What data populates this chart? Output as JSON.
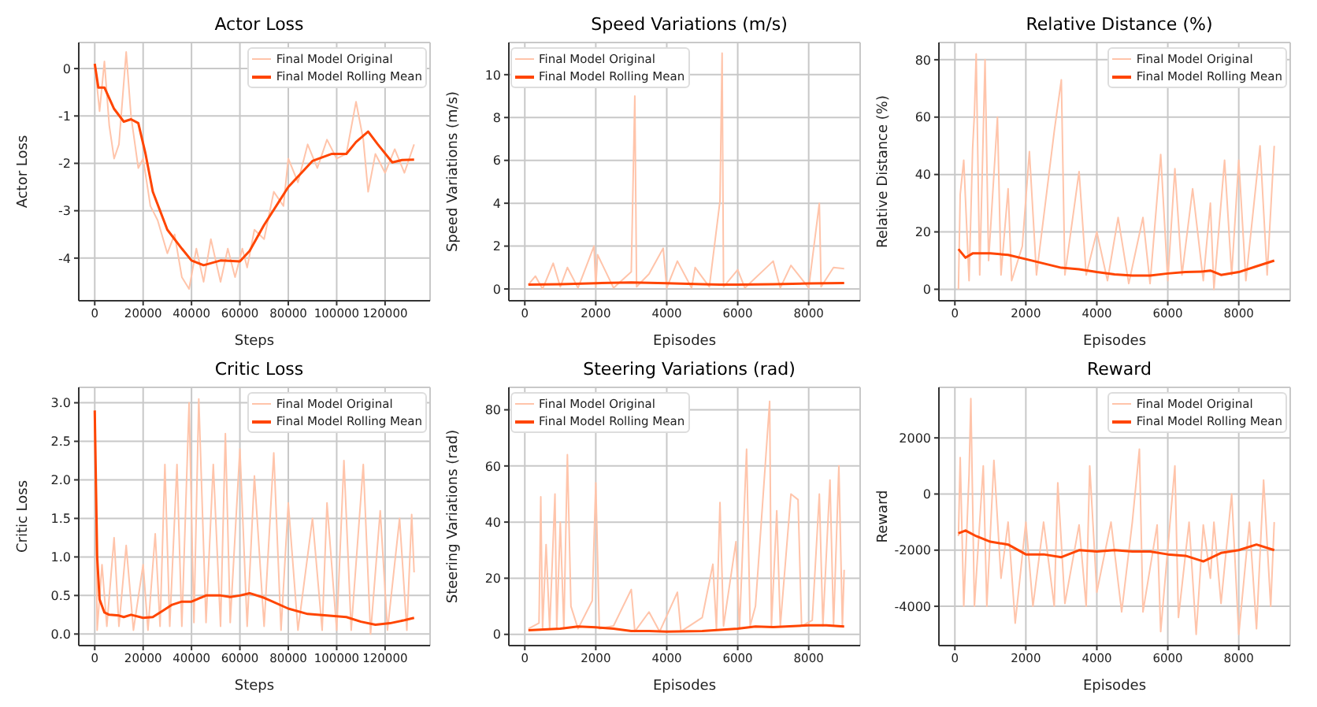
{
  "chart_data": [
    {
      "type": "line",
      "title": "Actor Loss",
      "xlabel": "Steps",
      "ylabel": "Actor Loss",
      "xlim": [
        -6600,
        138600
      ],
      "xticks": [
        0,
        20000,
        40000,
        60000,
        80000,
        100000,
        120000
      ],
      "ylim": [
        -4.9,
        0.55
      ],
      "yticks": [
        -4,
        -3,
        -2,
        -1,
        0
      ],
      "grid": true,
      "legend": "top right",
      "series": [
        {
          "name": "Final Model Original",
          "color": "#ffc4aa",
          "x": [
            0,
            2000,
            4000,
            6000,
            8000,
            10000,
            13000,
            15000,
            18000,
            20000,
            23000,
            26000,
            30000,
            33000,
            36000,
            39000,
            42000,
            45000,
            48000,
            52000,
            55000,
            58000,
            61000,
            63000,
            66000,
            70000,
            74000,
            78000,
            80000,
            84000,
            88000,
            92000,
            96000,
            100000,
            104000,
            108000,
            111000,
            113000,
            116000,
            120000,
            124000,
            128000,
            132000
          ],
          "values": [
            0.1,
            -0.9,
            0.15,
            -1.2,
            -1.9,
            -1.6,
            0.35,
            -1.0,
            -2.1,
            -1.9,
            -2.9,
            -3.2,
            -3.9,
            -3.5,
            -4.4,
            -4.65,
            -3.8,
            -4.5,
            -3.6,
            -4.5,
            -3.8,
            -4.4,
            -3.8,
            -4.2,
            -3.4,
            -3.6,
            -2.6,
            -2.9,
            -1.9,
            -2.4,
            -1.6,
            -2.1,
            -1.5,
            -1.9,
            -1.8,
            -0.7,
            -1.5,
            -2.6,
            -1.8,
            -2.2,
            -1.7,
            -2.2,
            -1.6
          ]
        },
        {
          "name": "Final Model Rolling Mean",
          "color": "#ff4500",
          "x": [
            0,
            1500,
            4000,
            8000,
            12000,
            15000,
            18000,
            21000,
            24000,
            30000,
            36000,
            40000,
            45000,
            52000,
            60000,
            64000,
            70000,
            80000,
            90000,
            98000,
            104000,
            108000,
            113000,
            117000,
            123000,
            127000,
            132000
          ],
          "values": [
            0.1,
            -0.4,
            -0.4,
            -0.85,
            -1.12,
            -1.07,
            -1.15,
            -1.8,
            -2.6,
            -3.4,
            -3.8,
            -4.05,
            -4.15,
            -4.05,
            -4.07,
            -3.85,
            -3.3,
            -2.5,
            -1.95,
            -1.8,
            -1.8,
            -1.55,
            -1.33,
            -1.6,
            -1.98,
            -1.93,
            -1.92
          ]
        }
      ]
    },
    {
      "type": "line",
      "title": "Speed Variations (m/s)",
      "xlabel": "Episodes",
      "ylabel": "Speed Variations (m/s)",
      "xlim": [
        -450,
        9450
      ],
      "xticks": [
        0,
        2000,
        4000,
        6000,
        8000
      ],
      "ylim": [
        -0.55,
        11.5
      ],
      "yticks": [
        0,
        2,
        4,
        6,
        8,
        10
      ],
      "grid": true,
      "legend": "top left",
      "series": [
        {
          "name": "Final Model Original",
          "color": "#ffc4aa",
          "x": [
            100,
            300,
            500,
            800,
            1000,
            1200,
            1500,
            1950,
            2000,
            2050,
            2500,
            3000,
            3100,
            3150,
            3500,
            3900,
            4000,
            4300,
            4700,
            4800,
            5200,
            5500,
            5560,
            5600,
            6000,
            6200,
            7000,
            7200,
            7500,
            8000,
            8300,
            8350,
            8700,
            9000
          ],
          "values": [
            0.2,
            0.6,
            0.0,
            1.2,
            0.1,
            1.0,
            0.05,
            2.0,
            0.1,
            1.6,
            0.05,
            0.8,
            9.0,
            0.1,
            0.7,
            1.9,
            0.05,
            1.3,
            0.05,
            1.0,
            0.1,
            4.1,
            11.0,
            0.1,
            0.9,
            0.05,
            1.3,
            0.05,
            1.1,
            0.05,
            4.0,
            0.1,
            1.0,
            0.95
          ]
        },
        {
          "name": "Final Model Rolling Mean",
          "color": "#ff4500",
          "x": [
            100,
            1000,
            2000,
            3000,
            4000,
            5000,
            5500,
            6000,
            7000,
            8000,
            9000
          ],
          "values": [
            0.2,
            0.22,
            0.27,
            0.3,
            0.27,
            0.22,
            0.2,
            0.2,
            0.22,
            0.26,
            0.28
          ]
        }
      ]
    },
    {
      "type": "line",
      "title": "Relative Distance (%)",
      "xlabel": "Episodes",
      "ylabel": "Relative Distance (%)",
      "xlim": [
        -450,
        9450
      ],
      "xticks": [
        0,
        2000,
        4000,
        6000,
        8000
      ],
      "ylim": [
        -4,
        86
      ],
      "yticks": [
        0,
        20,
        40,
        60,
        80
      ],
      "grid": true,
      "legend": "top right",
      "series": [
        {
          "name": "Final Model Original",
          "color": "#ffc4aa",
          "x": [
            100,
            150,
            250,
            400,
            500,
            550,
            600,
            700,
            850,
            950,
            1200,
            1300,
            1500,
            1600,
            1900,
            2100,
            2300,
            2800,
            3000,
            3100,
            3500,
            3700,
            4000,
            4300,
            4600,
            4900,
            5300,
            5500,
            5800,
            6000,
            6200,
            6400,
            6700,
            7000,
            7200,
            7300,
            7600,
            7800,
            8000,
            8200,
            8600,
            8800,
            9000
          ],
          "values": [
            0,
            33,
            45,
            3,
            49,
            61,
            82,
            5,
            80,
            10,
            60,
            5,
            35,
            3,
            15,
            48,
            5,
            55,
            73,
            5,
            41,
            5,
            20,
            3,
            25,
            2,
            25,
            2,
            47,
            3,
            42,
            5,
            35,
            3,
            30,
            0,
            45,
            5,
            45,
            3,
            50,
            5,
            50
          ]
        },
        {
          "name": "Final Model Rolling Mean",
          "color": "#ff4500",
          "x": [
            100,
            300,
            500,
            1000,
            1500,
            2000,
            2500,
            3000,
            3500,
            4000,
            4500,
            5000,
            5500,
            6000,
            6500,
            7000,
            7200,
            7500,
            8000,
            8500,
            9000
          ],
          "values": [
            14,
            11,
            12.5,
            12.5,
            12,
            10.5,
            9,
            7.5,
            7,
            6,
            5.2,
            4.8,
            4.8,
            5.5,
            6,
            6.2,
            6.5,
            5,
            6,
            8,
            10
          ]
        }
      ]
    },
    {
      "type": "line",
      "title": "Critic Loss",
      "xlabel": "Steps",
      "ylabel": "Critic Loss",
      "xlim": [
        -6600,
        138600
      ],
      "xticks": [
        0,
        20000,
        40000,
        60000,
        80000,
        100000,
        120000
      ],
      "ylim": [
        -0.15,
        3.2
      ],
      "yticks": [
        {
          "value": 0,
          "label": "0.0"
        },
        0.5,
        {
          "value": 1,
          "label": "1.0"
        },
        1.5,
        {
          "value": 2,
          "label": "2.0"
        },
        2.5,
        {
          "value": 3,
          "label": "3.0"
        }
      ],
      "grid": true,
      "legend": "top right",
      "series": [
        {
          "name": "Final Model Original",
          "color": "#ffc4aa",
          "x": [
            0,
            1000,
            3000,
            5000,
            8000,
            10000,
            13000,
            16000,
            20000,
            22000,
            25000,
            27000,
            29000,
            31000,
            34000,
            36000,
            39000,
            41000,
            43000,
            46000,
            49000,
            52000,
            54000,
            56000,
            60000,
            63000,
            66000,
            70000,
            74000,
            77000,
            80000,
            84000,
            90000,
            94000,
            96000,
            100000,
            103000,
            106000,
            111000,
            114000,
            118000,
            121000,
            126000,
            129000,
            131000,
            132000
          ],
          "values": [
            2.9,
            0.05,
            0.9,
            0.1,
            1.25,
            0.1,
            1.15,
            0.05,
            0.9,
            0.05,
            1.3,
            0.1,
            2.2,
            0.1,
            2.2,
            0.1,
            3.0,
            0.15,
            3.05,
            0.15,
            2.2,
            0.1,
            2.6,
            0.15,
            2.4,
            0.1,
            2.05,
            0.1,
            2.35,
            0.05,
            1.7,
            0.05,
            1.5,
            0.05,
            1.7,
            0.05,
            2.25,
            0.05,
            2.2,
            0.0,
            1.6,
            0.05,
            1.5,
            0.05,
            1.55,
            0.8
          ]
        },
        {
          "name": "Final Model Rolling Mean",
          "color": "#ff4500",
          "x": [
            0,
            1000,
            2000,
            4000,
            6000,
            10000,
            12000,
            15000,
            20000,
            24000,
            28000,
            32000,
            36000,
            40000,
            46000,
            52000,
            56000,
            60000,
            64000,
            70000,
            80000,
            88000,
            96000,
            104000,
            110000,
            116000,
            122000,
            128000,
            132000
          ],
          "values": [
            2.9,
            1.0,
            0.45,
            0.28,
            0.25,
            0.24,
            0.22,
            0.25,
            0.21,
            0.22,
            0.3,
            0.38,
            0.42,
            0.42,
            0.5,
            0.5,
            0.48,
            0.5,
            0.53,
            0.47,
            0.33,
            0.26,
            0.24,
            0.22,
            0.16,
            0.12,
            0.14,
            0.18,
            0.21
          ]
        }
      ]
    },
    {
      "type": "line",
      "title": "Steering Variations (rad)",
      "xlabel": "Episodes",
      "ylabel": "Steering Variations (rad)",
      "xlim": [
        -450,
        9450
      ],
      "xticks": [
        0,
        2000,
        4000,
        6000,
        8000
      ],
      "ylim": [
        -4,
        88
      ],
      "yticks": [
        0,
        20,
        40,
        60,
        80
      ],
      "grid": true,
      "legend": "top left",
      "series": [
        {
          "name": "Final Model Original",
          "color": "#ffc4aa",
          "x": [
            100,
            400,
            450,
            500,
            600,
            700,
            850,
            900,
            1000,
            1100,
            1200,
            1300,
            1500,
            1900,
            2000,
            2100,
            2500,
            3000,
            3100,
            3500,
            3800,
            4300,
            4400,
            5000,
            5300,
            5400,
            5500,
            5600,
            5950,
            6050,
            6250,
            6350,
            6500,
            6900,
            6950,
            7100,
            7200,
            7500,
            7700,
            7800,
            8100,
            8300,
            8400,
            8600,
            8700,
            8850,
            8950,
            9000
          ],
          "values": [
            2,
            4,
            49,
            2,
            32,
            2,
            50,
            2,
            40,
            2,
            64,
            10,
            2,
            12,
            54,
            2,
            3,
            16,
            1,
            8,
            1,
            15,
            1,
            6,
            25,
            2,
            47,
            3,
            33,
            2,
            66,
            3,
            10,
            83,
            3,
            44,
            3,
            50,
            48,
            3,
            5,
            50,
            3,
            55,
            3,
            60,
            3,
            23
          ]
        },
        {
          "name": "Final Model Rolling Mean",
          "color": "#ff4500",
          "x": [
            100,
            1000,
            1500,
            2000,
            2500,
            3000,
            3500,
            4000,
            5000,
            6000,
            6500,
            7000,
            8000,
            8500,
            9000
          ],
          "values": [
            1.5,
            2,
            2.8,
            2.5,
            2,
            1.2,
            1.2,
            1,
            1.2,
            2,
            2.8,
            2.6,
            3.2,
            3.2,
            2.8
          ]
        }
      ]
    },
    {
      "type": "line",
      "title": "Reward",
      "xlabel": "Episodes",
      "ylabel": "Reward",
      "xlim": [
        -450,
        9450
      ],
      "xticks": [
        0,
        2000,
        4000,
        6000,
        8000
      ],
      "ylim": [
        -5400,
        3800
      ],
      "yticks": [
        -4000,
        -2000,
        0,
        2000
      ],
      "grid": true,
      "legend": "top right",
      "series": [
        {
          "name": "Final Model Original",
          "color": "#ffc4aa",
          "x": [
            100,
            150,
            250,
            400,
            450,
            550,
            800,
            900,
            1100,
            1300,
            1500,
            1700,
            2000,
            2200,
            2500,
            2800,
            2900,
            3100,
            3500,
            3700,
            3800,
            4000,
            4400,
            4700,
            5000,
            5200,
            5300,
            5700,
            5800,
            6200,
            6300,
            6600,
            6800,
            7000,
            7200,
            7300,
            7500,
            7800,
            8000,
            8300,
            8500,
            8700,
            8900,
            9000
          ],
          "values": [
            -1500,
            1300,
            -4000,
            700,
            3400,
            -4000,
            1000,
            -4000,
            1200,
            -3000,
            -1000,
            -4600,
            -1000,
            -4000,
            -1000,
            -4000,
            400,
            -3900,
            -1100,
            -4000,
            1000,
            -3500,
            -1000,
            -4200,
            -1000,
            1600,
            -4200,
            -1100,
            -4900,
            1000,
            -4400,
            -1000,
            -5000,
            -1100,
            -3000,
            -1000,
            -3900,
            0,
            -5000,
            -1000,
            -4800,
            500,
            -4000,
            -1000
          ]
        },
        {
          "name": "Final Model Rolling Mean",
          "color": "#ff4500",
          "x": [
            100,
            300,
            600,
            1000,
            1500,
            2000,
            2500,
            3000,
            3500,
            4000,
            4500,
            5000,
            5500,
            6000,
            6500,
            7000,
            7500,
            8000,
            8500,
            9000
          ],
          "values": [
            -1400,
            -1300,
            -1500,
            -1700,
            -1800,
            -2150,
            -2150,
            -2250,
            -2000,
            -2050,
            -2000,
            -2050,
            -2050,
            -2150,
            -2200,
            -2400,
            -2100,
            -2000,
            -1800,
            -2000
          ]
        }
      ]
    }
  ]
}
